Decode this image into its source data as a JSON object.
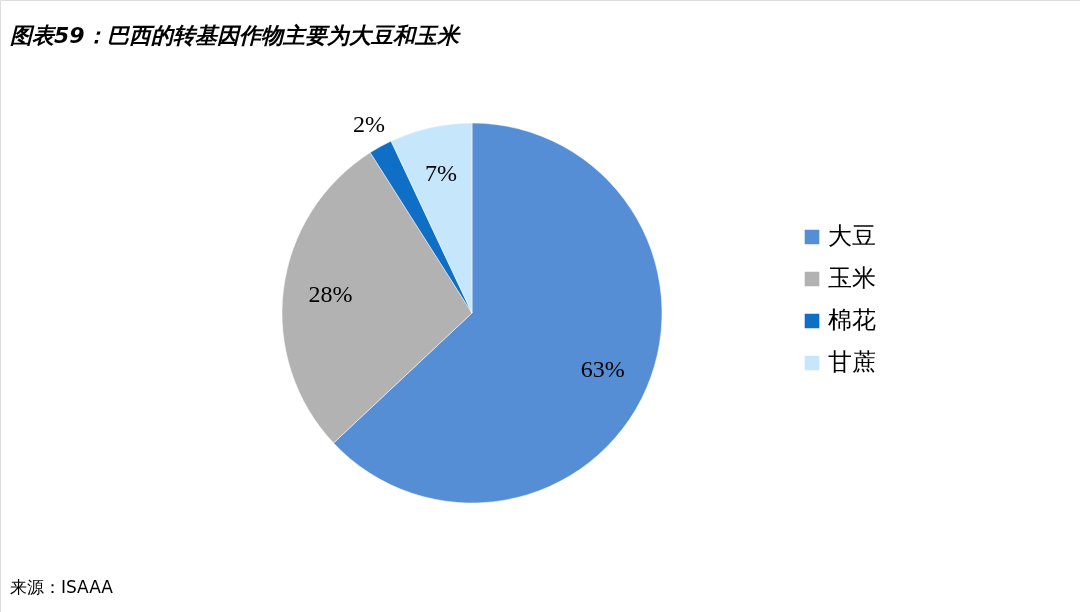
{
  "chart_data": {
    "type": "pie",
    "title": "图表59：巴西的转基因作物主要为大豆和玉米",
    "categories": [
      "大豆",
      "玉米",
      "棉花",
      "甘蔗"
    ],
    "values": [
      63,
      28,
      2,
      7
    ],
    "colors": [
      "#558ed5",
      "#b2b2b2",
      "#0f6fc6",
      "#c6e7fb"
    ],
    "value_labels": [
      "63%",
      "28%",
      "2%",
      "7%"
    ],
    "legend": "right",
    "annotations": [
      "来源：ISAAA"
    ]
  }
}
